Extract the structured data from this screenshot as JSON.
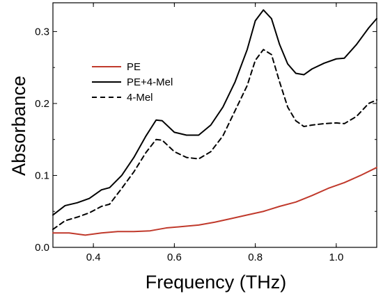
{
  "chart_data": {
    "type": "line",
    "title": "",
    "xlabel": "Frequency (THz)",
    "ylabel": "Absorbance",
    "xlim": [
      0.3,
      1.1
    ],
    "ylim": [
      0.0,
      0.34
    ],
    "xticks": [
      {
        "value": 0.4,
        "label": "0.4"
      },
      {
        "value": 0.6,
        "label": "0.6"
      },
      {
        "value": 0.8,
        "label": "0.8"
      },
      {
        "value": 1.0,
        "label": "1.0"
      }
    ],
    "yticks": [
      {
        "value": 0.0,
        "label": "0.0"
      },
      {
        "value": 0.1,
        "label": "0.1"
      },
      {
        "value": 0.2,
        "label": "0.2"
      },
      {
        "value": 0.3,
        "label": "0.3"
      }
    ],
    "grid": false,
    "legend_position": "upper-left",
    "series": [
      {
        "name": "PE",
        "color": "#c0392b",
        "style": "solid",
        "x": [
          0.3,
          0.34,
          0.38,
          0.42,
          0.46,
          0.5,
          0.54,
          0.58,
          0.62,
          0.66,
          0.7,
          0.74,
          0.78,
          0.82,
          0.86,
          0.9,
          0.94,
          0.98,
          1.02,
          1.06,
          1.1
        ],
        "y": [
          0.02,
          0.02,
          0.017,
          0.02,
          0.022,
          0.022,
          0.023,
          0.027,
          0.029,
          0.031,
          0.035,
          0.04,
          0.045,
          0.05,
          0.057,
          0.063,
          0.072,
          0.082,
          0.09,
          0.1,
          0.111
        ]
      },
      {
        "name": "PE+4-Mel",
        "color": "#000000",
        "style": "solid",
        "x": [
          0.3,
          0.33,
          0.36,
          0.39,
          0.42,
          0.44,
          0.47,
          0.5,
          0.53,
          0.555,
          0.57,
          0.6,
          0.63,
          0.66,
          0.69,
          0.72,
          0.75,
          0.78,
          0.8,
          0.82,
          0.84,
          0.86,
          0.88,
          0.9,
          0.92,
          0.94,
          0.97,
          1.0,
          1.02,
          1.05,
          1.08,
          1.1
        ],
        "y": [
          0.045,
          0.058,
          0.062,
          0.068,
          0.08,
          0.083,
          0.1,
          0.125,
          0.155,
          0.177,
          0.176,
          0.16,
          0.156,
          0.156,
          0.17,
          0.195,
          0.23,
          0.275,
          0.315,
          0.33,
          0.318,
          0.282,
          0.255,
          0.242,
          0.24,
          0.248,
          0.256,
          0.262,
          0.263,
          0.282,
          0.305,
          0.318
        ]
      },
      {
        "name": "4-Mel",
        "color": "#000000",
        "style": "dashed",
        "x": [
          0.3,
          0.33,
          0.36,
          0.39,
          0.42,
          0.44,
          0.47,
          0.5,
          0.53,
          0.555,
          0.57,
          0.6,
          0.63,
          0.66,
          0.69,
          0.72,
          0.75,
          0.78,
          0.8,
          0.82,
          0.84,
          0.86,
          0.88,
          0.9,
          0.92,
          0.94,
          0.97,
          1.0,
          1.02,
          1.05,
          1.08,
          1.1
        ],
        "y": [
          0.025,
          0.037,
          0.042,
          0.048,
          0.057,
          0.06,
          0.082,
          0.105,
          0.132,
          0.15,
          0.149,
          0.133,
          0.125,
          0.123,
          0.133,
          0.155,
          0.19,
          0.225,
          0.26,
          0.275,
          0.268,
          0.23,
          0.195,
          0.176,
          0.168,
          0.17,
          0.172,
          0.173,
          0.172,
          0.182,
          0.2,
          0.205
        ]
      }
    ]
  }
}
